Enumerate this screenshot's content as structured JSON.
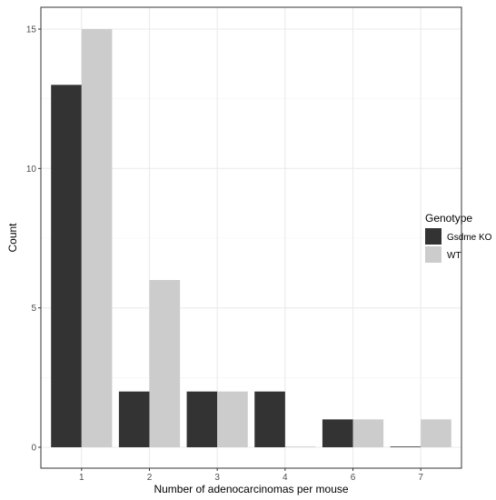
{
  "chart_data": {
    "type": "bar",
    "title": "",
    "xlabel": "Number of adenocarcinomas per mouse",
    "ylabel": "Count",
    "categories": [
      "1",
      "2",
      "3",
      "4",
      "6",
      "7"
    ],
    "ylim": [
      0,
      16
    ],
    "yticks": [
      0,
      5,
      10,
      15
    ],
    "grid": true,
    "legend": {
      "title": "Genotype",
      "placement": "right"
    },
    "series": [
      {
        "name": "Gsdme KO",
        "color": "#333333",
        "values": [
          13,
          2,
          2,
          2,
          1,
          0
        ]
      },
      {
        "name": "WT",
        "color": "#cccccc",
        "values": [
          15,
          6,
          2,
          0,
          1,
          1
        ]
      }
    ]
  }
}
